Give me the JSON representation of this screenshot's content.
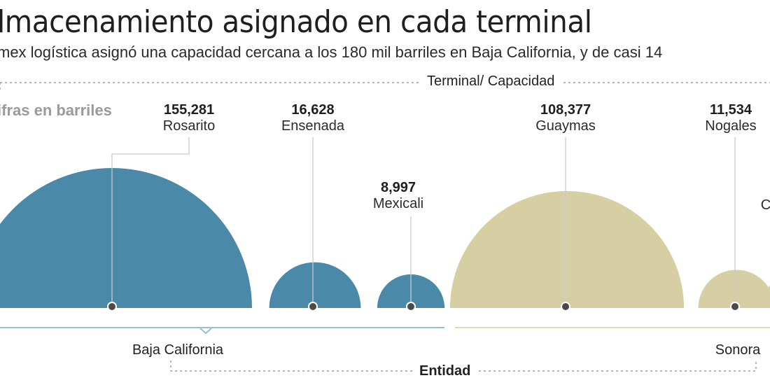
{
  "chart_data": {
    "type": "bubble",
    "title": "lmacenamiento asignado en cada terminal",
    "subtitle": "mex logística asignó una capacidad cercana a los 180 mil barriles en Baja California, y de casi 14",
    "top_legend": "Terminal/ Capacidad",
    "unit_note": "ifras en barriles",
    "bottom_legend": "Entidad",
    "terminals": [
      {
        "name": "Rosarito",
        "value": 155281,
        "value_label": "155,281",
        "state": "Baja California"
      },
      {
        "name": "Ensenada",
        "value": 16628,
        "value_label": "16,628",
        "state": "Baja California"
      },
      {
        "name": "Mexicali",
        "value": 8997,
        "value_label": "8,997",
        "state": "Baja California"
      },
      {
        "name": "Guaymas",
        "value": 108377,
        "value_label": "108,377",
        "state": "Sonora"
      },
      {
        "name": "Nogales",
        "value": 11534,
        "value_label": "11,534",
        "state": "Sonora"
      }
    ],
    "states": [
      {
        "name": "Baja California",
        "color": "#4a8aa8"
      },
      {
        "name": "Sonora",
        "color": "#d6cfa4"
      }
    ],
    "partial_label": "C"
  }
}
